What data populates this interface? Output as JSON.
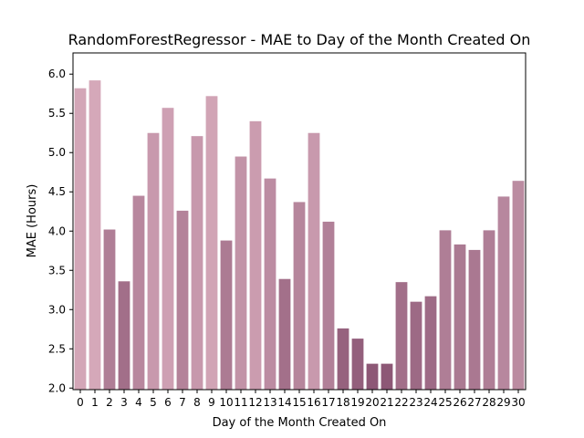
{
  "chart_data": {
    "type": "bar",
    "title": "RandomForestRegressor - MAE to Day of the Month Created On",
    "xlabel": "Day of the Month Created On",
    "ylabel": "MAE (Hours)",
    "ylim": [
      1.98,
      6.27
    ],
    "yticks": [
      "2.0",
      "2.5",
      "3.0",
      "3.5",
      "4.0",
      "4.5",
      "5.0",
      "5.5",
      "6.0"
    ],
    "grid": false,
    "categories": [
      "0",
      "1",
      "2",
      "3",
      "4",
      "5",
      "6",
      "7",
      "8",
      "9",
      "10",
      "11",
      "12",
      "13",
      "14",
      "15",
      "16",
      "17",
      "18",
      "19",
      "20",
      "21",
      "22",
      "23",
      "24",
      "25",
      "26",
      "27",
      "28",
      "29",
      "30"
    ],
    "values": [
      5.82,
      5.92,
      4.02,
      3.36,
      4.45,
      5.25,
      5.57,
      4.26,
      5.21,
      5.72,
      3.88,
      4.95,
      5.4,
      4.67,
      3.39,
      4.37,
      5.25,
      4.12,
      2.76,
      2.63,
      2.31,
      2.31,
      3.35,
      3.1,
      3.17,
      4.01,
      3.83,
      3.76,
      4.01,
      4.44,
      4.64
    ],
    "color_scale": {
      "low": "#8d5876",
      "high": "#d5a8b9"
    }
  }
}
